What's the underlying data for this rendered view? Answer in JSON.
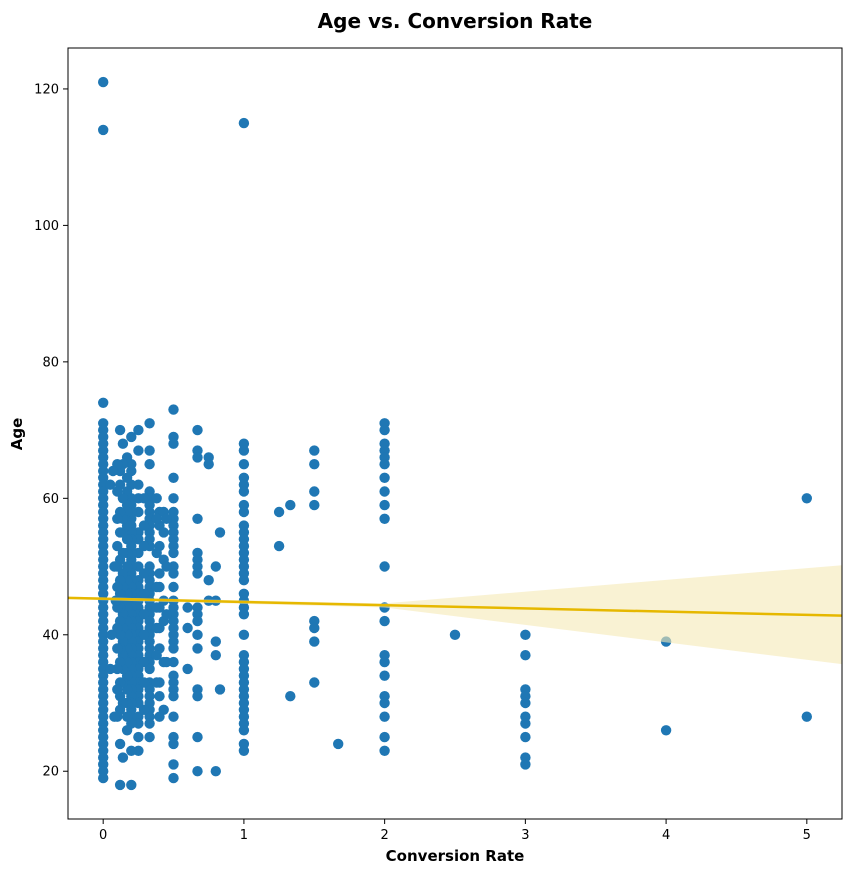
{
  "chart_data": {
    "type": "scatter",
    "title": "Age vs. Conversion Rate",
    "xlabel": "Conversion Rate",
    "ylabel": "Age",
    "xlim": [
      -0.25,
      5.25
    ],
    "ylim": [
      13,
      126
    ],
    "x_ticks": [
      0,
      1,
      2,
      3,
      4,
      5
    ],
    "y_ticks": [
      20,
      40,
      60,
      80,
      100,
      120
    ],
    "grid": false,
    "colors": {
      "points": "#1f77b4",
      "regression_line": "#e6b800",
      "confidence_band": "#f5e9b5"
    },
    "regression": {
      "x": [
        -0.25,
        5.25
      ],
      "y": [
        45.4,
        42.8
      ]
    },
    "confidence_band": {
      "x": [
        -0.25,
        2.0,
        5.25
      ],
      "lower": [
        45.2,
        44.0,
        35.7
      ],
      "upper": [
        45.6,
        44.6,
        50.2
      ]
    },
    "points": [
      [
        0,
        121
      ],
      [
        0,
        114
      ],
      [
        0,
        74
      ],
      [
        0,
        71
      ],
      [
        0,
        70
      ],
      [
        0,
        69
      ],
      [
        0,
        68
      ],
      [
        0,
        67
      ],
      [
        0,
        66
      ],
      [
        0,
        65
      ],
      [
        0,
        64
      ],
      [
        0,
        63
      ],
      [
        0,
        62
      ],
      [
        0,
        61
      ],
      [
        0,
        60
      ],
      [
        0,
        59
      ],
      [
        0,
        58
      ],
      [
        0,
        57
      ],
      [
        0,
        56
      ],
      [
        0,
        55
      ],
      [
        0,
        54
      ],
      [
        0,
        53
      ],
      [
        0,
        52
      ],
      [
        0,
        51
      ],
      [
        0,
        50
      ],
      [
        0,
        49
      ],
      [
        0,
        48
      ],
      [
        0,
        47
      ],
      [
        0,
        46
      ],
      [
        0,
        45
      ],
      [
        0,
        44
      ],
      [
        0,
        43
      ],
      [
        0,
        42
      ],
      [
        0,
        41
      ],
      [
        0,
        40
      ],
      [
        0,
        39
      ],
      [
        0,
        38
      ],
      [
        0,
        37
      ],
      [
        0,
        36
      ],
      [
        0,
        35
      ],
      [
        0,
        34
      ],
      [
        0,
        33
      ],
      [
        0,
        32
      ],
      [
        0,
        31
      ],
      [
        0,
        30
      ],
      [
        0,
        29
      ],
      [
        0,
        28
      ],
      [
        0,
        27
      ],
      [
        0,
        26
      ],
      [
        0,
        25
      ],
      [
        0,
        24
      ],
      [
        0,
        23
      ],
      [
        0,
        22
      ],
      [
        0,
        21
      ],
      [
        0,
        20
      ],
      [
        0,
        19
      ],
      [
        1,
        115
      ],
      [
        1,
        68
      ],
      [
        1,
        67
      ],
      [
        1,
        65
      ],
      [
        1,
        63
      ],
      [
        1,
        62
      ],
      [
        1,
        61
      ],
      [
        1,
        59
      ],
      [
        1,
        58
      ],
      [
        1,
        56
      ],
      [
        1,
        55
      ],
      [
        1,
        54
      ],
      [
        1,
        53
      ],
      [
        1,
        52
      ],
      [
        1,
        51
      ],
      [
        1,
        50
      ],
      [
        1,
        49
      ],
      [
        1,
        48
      ],
      [
        1,
        46
      ],
      [
        1,
        45
      ],
      [
        1,
        44
      ],
      [
        1,
        43
      ],
      [
        1,
        40
      ],
      [
        1,
        37
      ],
      [
        1,
        36
      ],
      [
        1,
        35
      ],
      [
        1,
        34
      ],
      [
        1,
        33
      ],
      [
        1,
        32
      ],
      [
        1,
        31
      ],
      [
        1,
        30
      ],
      [
        1,
        29
      ],
      [
        1,
        28
      ],
      [
        1,
        27
      ],
      [
        1,
        26
      ],
      [
        1,
        24
      ],
      [
        1,
        23
      ],
      [
        2,
        71
      ],
      [
        2,
        70
      ],
      [
        2,
        68
      ],
      [
        2,
        67
      ],
      [
        2,
        66
      ],
      [
        2,
        65
      ],
      [
        2,
        63
      ],
      [
        2,
        61
      ],
      [
        2,
        59
      ],
      [
        2,
        57
      ],
      [
        2,
        50
      ],
      [
        2,
        44
      ],
      [
        2,
        42
      ],
      [
        2,
        37
      ],
      [
        2,
        36
      ],
      [
        2,
        34
      ],
      [
        2,
        31
      ],
      [
        2,
        30
      ],
      [
        2,
        28
      ],
      [
        2,
        25
      ],
      [
        2,
        23
      ],
      [
        3,
        40
      ],
      [
        3,
        37
      ],
      [
        3,
        32
      ],
      [
        3,
        31
      ],
      [
        3,
        30
      ],
      [
        3,
        28
      ],
      [
        3,
        27
      ],
      [
        3,
        25
      ],
      [
        3,
        22
      ],
      [
        3,
        21
      ],
      [
        4,
        39
      ],
      [
        4,
        26
      ],
      [
        5,
        60
      ],
      [
        5,
        28
      ],
      [
        2.5,
        40
      ],
      [
        1.67,
        24
      ],
      [
        1.33,
        59
      ],
      [
        1.33,
        31
      ],
      [
        1.25,
        58
      ],
      [
        1.25,
        53
      ],
      [
        1.5,
        67
      ],
      [
        1.5,
        65
      ],
      [
        1.5,
        61
      ],
      [
        1.5,
        59
      ],
      [
        1.5,
        42
      ],
      [
        1.5,
        41
      ],
      [
        1.5,
        39
      ],
      [
        1.5,
        33
      ],
      [
        0.5,
        73
      ],
      [
        0.5,
        69
      ],
      [
        0.5,
        68
      ],
      [
        0.5,
        63
      ],
      [
        0.5,
        60
      ],
      [
        0.5,
        58
      ],
      [
        0.5,
        57
      ],
      [
        0.5,
        56
      ],
      [
        0.5,
        55
      ],
      [
        0.5,
        54
      ],
      [
        0.5,
        53
      ],
      [
        0.5,
        52
      ],
      [
        0.5,
        50
      ],
      [
        0.5,
        49
      ],
      [
        0.5,
        47
      ],
      [
        0.5,
        45
      ],
      [
        0.5,
        44
      ],
      [
        0.5,
        43
      ],
      [
        0.5,
        42
      ],
      [
        0.5,
        41
      ],
      [
        0.5,
        40
      ],
      [
        0.5,
        39
      ],
      [
        0.5,
        38
      ],
      [
        0.5,
        36
      ],
      [
        0.5,
        34
      ],
      [
        0.5,
        33
      ],
      [
        0.5,
        32
      ],
      [
        0.5,
        31
      ],
      [
        0.5,
        28
      ],
      [
        0.5,
        25
      ],
      [
        0.5,
        24
      ],
      [
        0.5,
        21
      ],
      [
        0.5,
        19
      ],
      [
        0.67,
        70
      ],
      [
        0.67,
        67
      ],
      [
        0.67,
        66
      ],
      [
        0.67,
        57
      ],
      [
        0.67,
        52
      ],
      [
        0.67,
        51
      ],
      [
        0.67,
        50
      ],
      [
        0.67,
        49
      ],
      [
        0.67,
        44
      ],
      [
        0.67,
        43
      ],
      [
        0.67,
        42
      ],
      [
        0.67,
        40
      ],
      [
        0.67,
        38
      ],
      [
        0.67,
        32
      ],
      [
        0.67,
        31
      ],
      [
        0.67,
        25
      ],
      [
        0.67,
        20
      ],
      [
        0.75,
        66
      ],
      [
        0.75,
        65
      ],
      [
        0.75,
        48
      ],
      [
        0.75,
        45
      ],
      [
        0.8,
        50
      ],
      [
        0.8,
        45
      ],
      [
        0.8,
        39
      ],
      [
        0.8,
        37
      ],
      [
        0.8,
        20
      ],
      [
        0.83,
        55
      ],
      [
        0.83,
        32
      ],
      [
        0.6,
        44
      ],
      [
        0.6,
        41
      ],
      [
        0.6,
        35
      ],
      [
        0.33,
        71
      ],
      [
        0.33,
        67
      ],
      [
        0.33,
        65
      ],
      [
        0.33,
        61
      ],
      [
        0.33,
        60
      ],
      [
        0.33,
        59
      ],
      [
        0.33,
        58
      ],
      [
        0.33,
        57
      ],
      [
        0.33,
        56
      ],
      [
        0.33,
        55
      ],
      [
        0.33,
        54
      ],
      [
        0.33,
        53
      ],
      [
        0.33,
        50
      ],
      [
        0.33,
        49
      ],
      [
        0.33,
        48
      ],
      [
        0.33,
        47
      ],
      [
        0.33,
        46
      ],
      [
        0.33,
        45
      ],
      [
        0.33,
        44
      ],
      [
        0.33,
        43
      ],
      [
        0.33,
        42
      ],
      [
        0.33,
        41
      ],
      [
        0.33,
        40
      ],
      [
        0.33,
        39
      ],
      [
        0.33,
        38
      ],
      [
        0.33,
        37
      ],
      [
        0.33,
        36
      ],
      [
        0.33,
        35
      ],
      [
        0.33,
        33
      ],
      [
        0.33,
        32
      ],
      [
        0.33,
        31
      ],
      [
        0.33,
        30
      ],
      [
        0.33,
        29
      ],
      [
        0.33,
        28
      ],
      [
        0.33,
        27
      ],
      [
        0.33,
        25
      ],
      [
        0.25,
        70
      ],
      [
        0.25,
        67
      ],
      [
        0.25,
        62
      ],
      [
        0.25,
        60
      ],
      [
        0.25,
        58
      ],
      [
        0.25,
        55
      ],
      [
        0.25,
        54
      ],
      [
        0.25,
        52
      ],
      [
        0.25,
        50
      ],
      [
        0.25,
        48
      ],
      [
        0.25,
        47
      ],
      [
        0.25,
        46
      ],
      [
        0.25,
        45
      ],
      [
        0.25,
        44
      ],
      [
        0.25,
        43
      ],
      [
        0.25,
        42
      ],
      [
        0.25,
        41
      ],
      [
        0.25,
        40
      ],
      [
        0.25,
        39
      ],
      [
        0.25,
        38
      ],
      [
        0.25,
        37
      ],
      [
        0.25,
        36
      ],
      [
        0.25,
        35
      ],
      [
        0.25,
        34
      ],
      [
        0.25,
        33
      ],
      [
        0.25,
        32
      ],
      [
        0.25,
        31
      ],
      [
        0.25,
        30
      ],
      [
        0.25,
        28
      ],
      [
        0.25,
        27
      ],
      [
        0.25,
        25
      ],
      [
        0.25,
        23
      ],
      [
        0.2,
        69
      ],
      [
        0.2,
        65
      ],
      [
        0.2,
        64
      ],
      [
        0.2,
        62
      ],
      [
        0.2,
        60
      ],
      [
        0.2,
        59
      ],
      [
        0.2,
        58
      ],
      [
        0.2,
        57
      ],
      [
        0.2,
        56
      ],
      [
        0.2,
        55
      ],
      [
        0.2,
        54
      ],
      [
        0.2,
        53
      ],
      [
        0.2,
        52
      ],
      [
        0.2,
        51
      ],
      [
        0.2,
        50
      ],
      [
        0.2,
        49
      ],
      [
        0.2,
        48
      ],
      [
        0.2,
        47
      ],
      [
        0.2,
        46
      ],
      [
        0.2,
        45
      ],
      [
        0.2,
        44
      ],
      [
        0.2,
        43
      ],
      [
        0.2,
        42
      ],
      [
        0.2,
        41
      ],
      [
        0.2,
        40
      ],
      [
        0.2,
        39
      ],
      [
        0.2,
        38
      ],
      [
        0.2,
        37
      ],
      [
        0.2,
        36
      ],
      [
        0.2,
        35
      ],
      [
        0.2,
        34
      ],
      [
        0.2,
        33
      ],
      [
        0.2,
        32
      ],
      [
        0.2,
        31
      ],
      [
        0.2,
        30
      ],
      [
        0.2,
        29
      ],
      [
        0.2,
        28
      ],
      [
        0.2,
        27
      ],
      [
        0.2,
        23
      ],
      [
        0.2,
        18
      ],
      [
        0.17,
        66
      ],
      [
        0.17,
        63
      ],
      [
        0.17,
        61
      ],
      [
        0.17,
        59
      ],
      [
        0.17,
        58
      ],
      [
        0.17,
        56
      ],
      [
        0.17,
        54
      ],
      [
        0.17,
        52
      ],
      [
        0.17,
        50
      ],
      [
        0.17,
        48
      ],
      [
        0.17,
        46
      ],
      [
        0.17,
        44
      ],
      [
        0.17,
        42
      ],
      [
        0.17,
        40
      ],
      [
        0.17,
        38
      ],
      [
        0.17,
        36
      ],
      [
        0.17,
        34
      ],
      [
        0.17,
        32
      ],
      [
        0.17,
        30
      ],
      [
        0.17,
        28
      ],
      [
        0.17,
        26
      ],
      [
        0.14,
        68
      ],
      [
        0.14,
        65
      ],
      [
        0.14,
        60
      ],
      [
        0.14,
        57
      ],
      [
        0.14,
        55
      ],
      [
        0.14,
        52
      ],
      [
        0.14,
        49
      ],
      [
        0.14,
        47
      ],
      [
        0.14,
        45
      ],
      [
        0.14,
        43
      ],
      [
        0.14,
        41
      ],
      [
        0.14,
        39
      ],
      [
        0.14,
        37
      ],
      [
        0.14,
        35
      ],
      [
        0.14,
        33
      ],
      [
        0.14,
        30
      ],
      [
        0.14,
        22
      ],
      [
        0.12,
        70
      ],
      [
        0.12,
        64
      ],
      [
        0.12,
        62
      ],
      [
        0.12,
        58
      ],
      [
        0.12,
        55
      ],
      [
        0.12,
        51
      ],
      [
        0.12,
        48
      ],
      [
        0.12,
        46
      ],
      [
        0.12,
        44
      ],
      [
        0.12,
        42
      ],
      [
        0.12,
        40
      ],
      [
        0.12,
        38
      ],
      [
        0.12,
        36
      ],
      [
        0.12,
        33
      ],
      [
        0.12,
        31
      ],
      [
        0.12,
        29
      ],
      [
        0.12,
        24
      ],
      [
        0.12,
        18
      ],
      [
        0.1,
        65
      ],
      [
        0.1,
        61
      ],
      [
        0.1,
        57
      ],
      [
        0.1,
        53
      ],
      [
        0.1,
        50
      ],
      [
        0.1,
        47
      ],
      [
        0.1,
        44
      ],
      [
        0.1,
        41
      ],
      [
        0.1,
        38
      ],
      [
        0.1,
        35
      ],
      [
        0.1,
        32
      ],
      [
        0.1,
        28
      ],
      [
        0.29,
        60
      ],
      [
        0.29,
        56
      ],
      [
        0.29,
        53
      ],
      [
        0.29,
        49
      ],
      [
        0.29,
        46
      ],
      [
        0.29,
        43
      ],
      [
        0.29,
        40
      ],
      [
        0.29,
        36
      ],
      [
        0.29,
        33
      ],
      [
        0.29,
        29
      ],
      [
        0.4,
        58
      ],
      [
        0.4,
        56
      ],
      [
        0.4,
        53
      ],
      [
        0.4,
        49
      ],
      [
        0.4,
        47
      ],
      [
        0.4,
        44
      ],
      [
        0.4,
        41
      ],
      [
        0.4,
        38
      ],
      [
        0.4,
        33
      ],
      [
        0.4,
        31
      ],
      [
        0.4,
        28
      ],
      [
        0.43,
        58
      ],
      [
        0.43,
        55
      ],
      [
        0.43,
        51
      ],
      [
        0.43,
        45
      ],
      [
        0.43,
        42
      ],
      [
        0.43,
        36
      ],
      [
        0.43,
        29
      ],
      [
        0.38,
        60
      ],
      [
        0.38,
        57
      ],
      [
        0.38,
        52
      ],
      [
        0.38,
        47
      ],
      [
        0.38,
        44
      ],
      [
        0.38,
        41
      ],
      [
        0.38,
        37
      ],
      [
        0.38,
        33
      ],
      [
        0.45,
        57
      ],
      [
        0.45,
        50
      ],
      [
        0.45,
        43
      ],
      [
        0.45,
        36
      ],
      [
        0.07,
        64
      ],
      [
        0.05,
        62
      ],
      [
        0.08,
        50
      ],
      [
        0.09,
        45
      ],
      [
        0.06,
        40
      ],
      [
        0.05,
        35
      ],
      [
        0.08,
        28
      ]
    ]
  }
}
